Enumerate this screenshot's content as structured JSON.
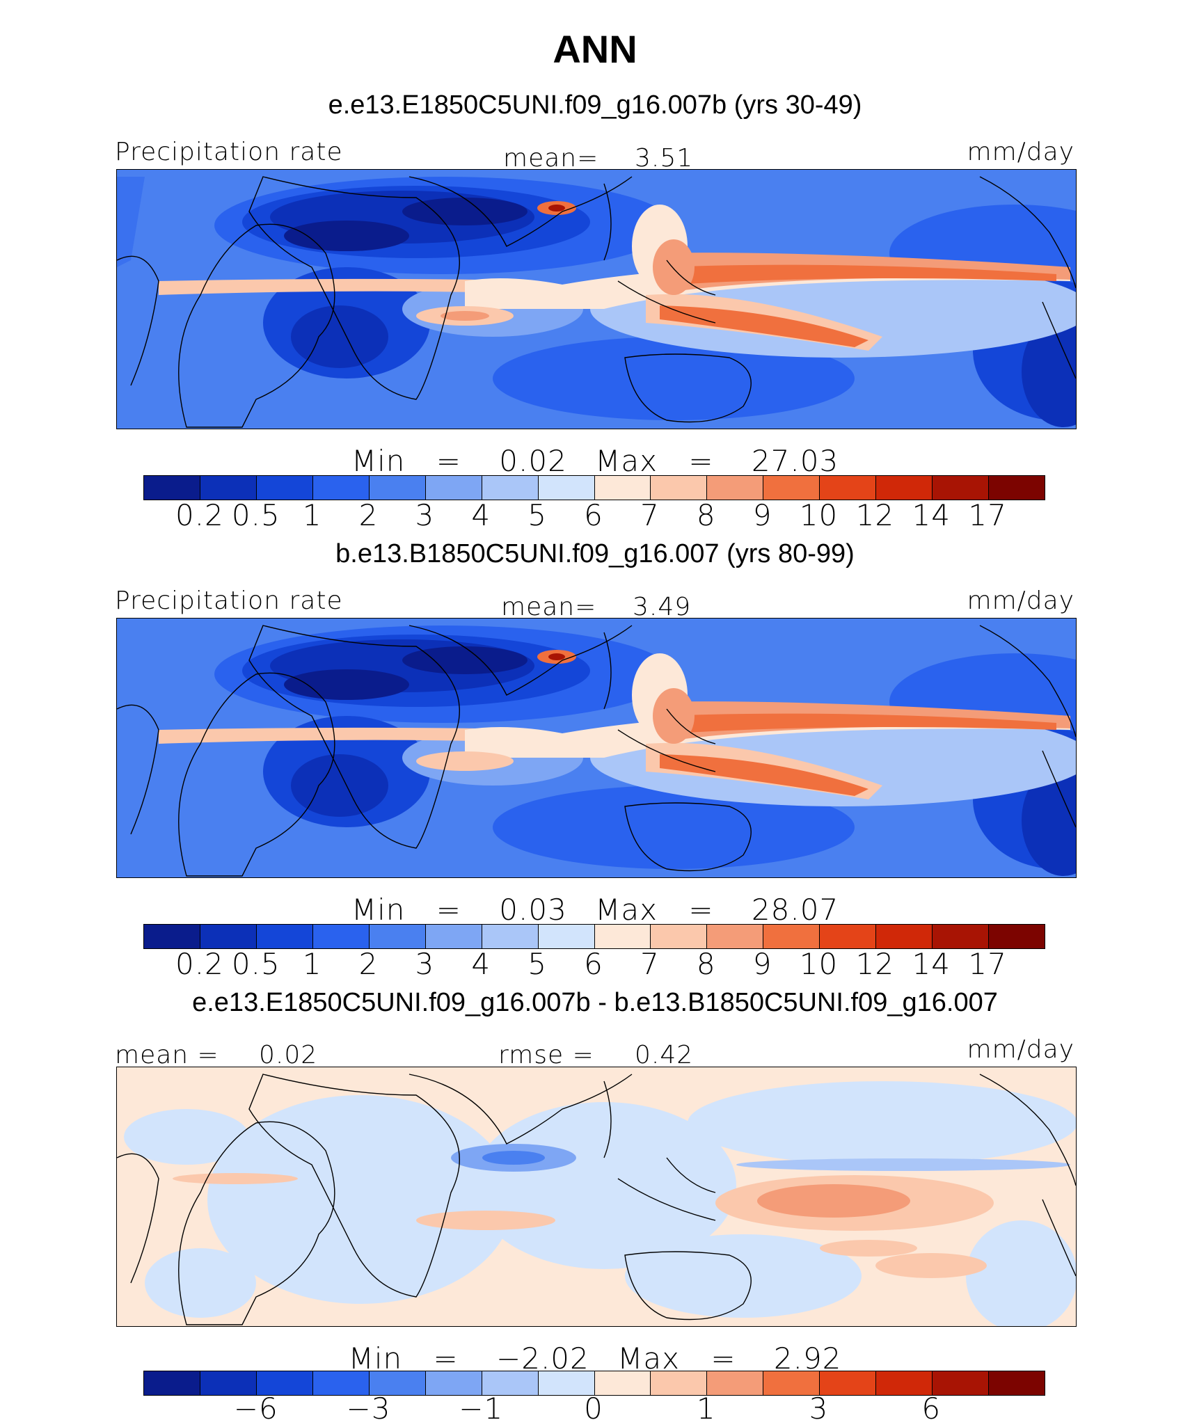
{
  "page_title": "ANN",
  "panels": [
    {
      "title": "e.e13.E1850C5UNI.f09_g16.007b (yrs 30-49)",
      "left_label": "Precipitation rate",
      "center_label": "mean=",
      "center_value": "3.51",
      "units": "mm/day",
      "min_label": "Min",
      "min_value": "0.02",
      "max_label": "Max",
      "max_value": "27.03",
      "colorbar_ticks": [
        "0.2",
        "0.5",
        "1",
        "2",
        "3",
        "4",
        "5",
        "6",
        "7",
        "8",
        "9",
        "10",
        "12",
        "14",
        "17"
      ]
    },
    {
      "title": "b.e13.B1850C5UNI.f09_g16.007 (yrs 80-99)",
      "left_label": "Precipitation rate",
      "center_label": "mean=",
      "center_value": "3.49",
      "units": "mm/day",
      "min_label": "Min",
      "min_value": "0.03",
      "max_label": "Max",
      "max_value": "28.07",
      "colorbar_ticks": [
        "0.2",
        "0.5",
        "1",
        "2",
        "3",
        "4",
        "5",
        "6",
        "7",
        "8",
        "9",
        "10",
        "12",
        "14",
        "17"
      ]
    },
    {
      "title": "e.e13.E1850C5UNI.f09_g16.007b - b.e13.B1850C5UNI.f09_g16.007",
      "left_label": "mean =",
      "left_value": "0.02",
      "center_label": "rmse =",
      "center_value": "0.42",
      "units": "mm/day",
      "min_label": "Min",
      "min_value": "−2.02",
      "max_label": "Max",
      "max_value": "2.92",
      "colorbar_ticks": [
        "−6",
        "−3",
        "−1",
        "0",
        "1",
        "3",
        "6"
      ]
    }
  ],
  "colorbar_colors": [
    "#0a1c8c",
    "#0c30b8",
    "#1446d8",
    "#2a62ee",
    "#4a80f0",
    "#7ea6f4",
    "#aac6f8",
    "#d2e4fc",
    "#fde8d8",
    "#fbc8ac",
    "#f49c78",
    "#f0703e",
    "#e44418",
    "#d02808",
    "#a81404",
    "#7c0400"
  ],
  "equals_sign": "="
}
